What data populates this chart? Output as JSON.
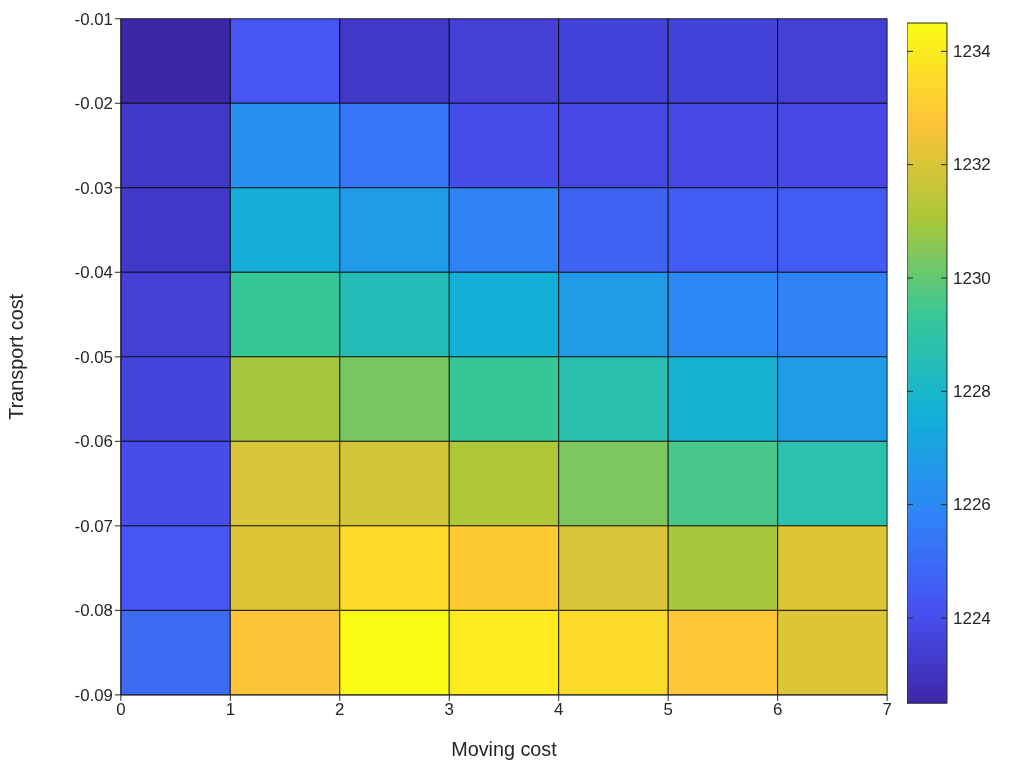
{
  "chart_data": {
    "type": "heatmap",
    "xlabel": "Moving cost",
    "ylabel": "Transport cost",
    "xlim": [
      0,
      7
    ],
    "xticks": [
      0,
      1,
      2,
      3,
      4,
      5,
      6,
      7
    ],
    "ylim": [
      -0.09,
      -0.01
    ],
    "yticks": [
      -0.09,
      -0.08,
      -0.07,
      -0.06,
      -0.05,
      -0.04,
      -0.03,
      -0.02,
      -0.01
    ],
    "clim": [
      1222.5,
      1234.5
    ],
    "cticks": [
      1224,
      1226,
      1228,
      1230,
      1232,
      1234
    ],
    "cells": [
      [
        1222.5,
        1224.3,
        1223.2,
        1223.5,
        1223.6,
        1223.6,
        1223.5
      ],
      [
        1223.2,
        1226.3,
        1225.3,
        1224.0,
        1223.8,
        1223.8,
        1223.8
      ],
      [
        1223.2,
        1227.5,
        1226.7,
        1225.8,
        1224.8,
        1224.5,
        1224.5
      ],
      [
        1223.5,
        1229.3,
        1228.5,
        1227.6,
        1226.7,
        1226.0,
        1225.8
      ],
      [
        1223.7,
        1231.0,
        1230.3,
        1229.3,
        1228.7,
        1227.8,
        1226.7
      ],
      [
        1224.0,
        1232.0,
        1231.9,
        1231.1,
        1230.4,
        1229.6,
        1228.8
      ],
      [
        1224.3,
        1232.1,
        1233.5,
        1233.0,
        1232.0,
        1231.0,
        1232.1
      ],
      [
        1225.0,
        1232.8,
        1234.5,
        1234.0,
        1233.5,
        1232.9,
        1232.1
      ]
    ]
  }
}
